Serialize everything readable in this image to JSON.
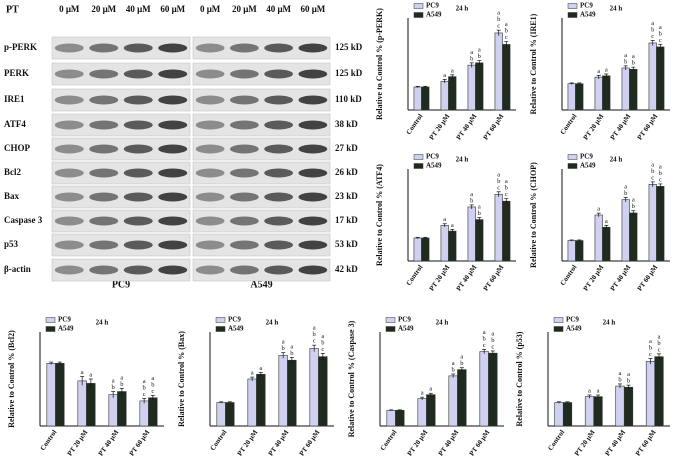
{
  "blot": {
    "treatment_label": "PT",
    "doses": [
      "0 μM",
      "20 μM",
      "40 μM",
      "60 μM"
    ],
    "proteins": [
      "p-PERK",
      "PERK",
      "IRE1",
      "ATF4",
      "CHOP",
      "Bcl2",
      "Bax",
      "Caspase 3",
      "p53",
      "β-actin"
    ],
    "sizes": [
      "125 kD",
      "125 kD",
      "110 kD",
      "38 kD",
      "27 kD",
      "26 kD",
      "23 kD",
      "17 kD",
      "53 kD",
      "42 kD"
    ],
    "cell_lines": [
      "PC9",
      "A549"
    ]
  },
  "chart_data": [
    {
      "type": "bar",
      "title": "24 h",
      "y_label": "Relative to Control % (p-PERK)",
      "categories": [
        "Control",
        "PT 20 μM",
        "PT 40 μM",
        "PT 60 μM"
      ],
      "ylim": [
        0,
        400
      ],
      "series": [
        {
          "name": "PC9",
          "color": "#d0d0f0",
          "values": [
            100,
            125,
            195,
            335
          ],
          "errors": [
            3,
            8,
            10,
            12
          ],
          "letters": [
            [],
            [
              "a"
            ],
            [
              "a",
              "b"
            ],
            [
              "a",
              "b",
              "c"
            ]
          ]
        },
        {
          "name": "A549",
          "color": "#1e2b1e",
          "values": [
            100,
            145,
            205,
            285
          ],
          "errors": [
            3,
            8,
            10,
            12
          ],
          "letters": [
            [],
            [
              "a"
            ],
            [
              "a",
              "b"
            ],
            [
              "a",
              "b",
              "c"
            ]
          ]
        }
      ]
    },
    {
      "type": "bar",
      "title": "24 h",
      "y_label": "Relative to Control % (IRE1)",
      "categories": [
        "Control",
        "PT 20 μM",
        "PT 40 μM",
        "PT 60 μM"
      ],
      "ylim": [
        0,
        350
      ],
      "series": [
        {
          "name": "PC9",
          "color": "#d0d0f0",
          "values": [
            100,
            125,
            160,
            255
          ],
          "errors": [
            3,
            7,
            8,
            10
          ],
          "letters": [
            [],
            [
              "a"
            ],
            [
              "a",
              "b"
            ],
            [
              "a",
              "b",
              "c"
            ]
          ]
        },
        {
          "name": "A549",
          "color": "#1e2b1e",
          "values": [
            100,
            130,
            155,
            240
          ],
          "errors": [
            3,
            7,
            8,
            10
          ],
          "letters": [
            [],
            [
              "a"
            ],
            [
              "a",
              "b"
            ],
            [
              "a",
              "b",
              "c"
            ]
          ]
        }
      ]
    },
    {
      "type": "bar",
      "title": "24 h",
      "y_label": "Relative to Control % (ATF4)",
      "categories": [
        "Control",
        "PT 20 μM",
        "PT 40 μM",
        "PT 60 μM"
      ],
      "ylim": [
        0,
        400
      ],
      "series": [
        {
          "name": "PC9",
          "color": "#d0d0f0",
          "values": [
            100,
            155,
            235,
            290
          ],
          "errors": [
            3,
            7,
            9,
            11
          ],
          "letters": [
            [],
            [
              "a"
            ],
            [
              "a",
              "b"
            ],
            [
              "a",
              "b",
              "c"
            ]
          ]
        },
        {
          "name": "A549",
          "color": "#1e2b1e",
          "values": [
            100,
            130,
            180,
            260
          ],
          "errors": [
            3,
            7,
            9,
            11
          ],
          "letters": [
            [],
            [
              "a"
            ],
            [
              "a",
              "b"
            ],
            [
              "a",
              "b",
              "c"
            ]
          ]
        }
      ]
    },
    {
      "type": "bar",
      "title": "24 h",
      "y_label": "Relative to Control % (CHOP)",
      "categories": [
        "Control",
        "PT 20 μM",
        "PT 40 μM",
        "PT 60 μM"
      ],
      "ylim": [
        0,
        450
      ],
      "series": [
        {
          "name": "PC9",
          "color": "#d0d0f0",
          "values": [
            100,
            225,
            300,
            375
          ],
          "errors": [
            3,
            9,
            11,
            12
          ],
          "letters": [
            [],
            [
              "a"
            ],
            [
              "a",
              "b"
            ],
            [
              "a",
              "b",
              "c"
            ]
          ]
        },
        {
          "name": "A549",
          "color": "#1e2b1e",
          "values": [
            100,
            165,
            235,
            365
          ],
          "errors": [
            3,
            9,
            11,
            12
          ],
          "letters": [
            [],
            [
              "a"
            ],
            [
              "a",
              "b"
            ],
            [
              "a",
              "b",
              "c"
            ]
          ]
        }
      ]
    },
    {
      "type": "bar",
      "title": "24 h",
      "y_label": "Relative to Control % (Bcl2)",
      "categories": [
        "Control",
        "PT 20 μM",
        "PT 40 μM",
        "PT 60 μM"
      ],
      "ylim": [
        0,
        150
      ],
      "series": [
        {
          "name": "PC9",
          "color": "#d0d0f0",
          "values": [
            100,
            72,
            50,
            40
          ],
          "errors": [
            2,
            7,
            5,
            4
          ],
          "letters": [
            [],
            [
              "a"
            ],
            [
              "a",
              "b"
            ],
            [
              "a",
              "b",
              "c"
            ]
          ]
        },
        {
          "name": "A549",
          "color": "#1e2b1e",
          "values": [
            100,
            68,
            55,
            45
          ],
          "errors": [
            2,
            7,
            5,
            4
          ],
          "letters": [
            [],
            [
              "a"
            ],
            [
              "a",
              "b"
            ],
            [
              "a",
              "b",
              "c"
            ]
          ]
        }
      ]
    },
    {
      "type": "bar",
      "title": "24 h",
      "y_label": "Relative to Control % (Bax)",
      "categories": [
        "Control",
        "PT 20 μM",
        "PT 40 μM",
        "PT 60 μM"
      ],
      "ylim": [
        0,
        400
      ],
      "series": [
        {
          "name": "PC9",
          "color": "#d0d0f0",
          "values": [
            100,
            200,
            300,
            330
          ],
          "errors": [
            3,
            8,
            12,
            14
          ],
          "letters": [
            [],
            [
              "a"
            ],
            [
              "a",
              "b"
            ],
            [
              "a",
              "b",
              "c"
            ]
          ]
        },
        {
          "name": "A549",
          "color": "#1e2b1e",
          "values": [
            100,
            220,
            280,
            295
          ],
          "errors": [
            3,
            8,
            12,
            14
          ],
          "letters": [
            [],
            [
              "a"
            ],
            [
              "a",
              "b"
            ],
            [
              "a",
              "b",
              "c"
            ]
          ]
        }
      ]
    },
    {
      "type": "bar",
      "title": "24 h",
      "y_label": "Relative to Control % (Caspase 3)",
      "categories": [
        "Control",
        "PT 20 μM",
        "PT 40 μM",
        "PT 60 μM"
      ],
      "ylim": [
        0,
        600
      ],
      "series": [
        {
          "name": "PC9",
          "color": "#d0d0f0",
          "values": [
            100,
            175,
            320,
            475
          ],
          "errors": [
            3,
            9,
            12,
            14
          ],
          "letters": [
            [],
            [
              "a"
            ],
            [
              "a",
              "b"
            ],
            [
              "a",
              "b",
              "c"
            ]
          ]
        },
        {
          "name": "A549",
          "color": "#1e2b1e",
          "values": [
            100,
            200,
            360,
            465
          ],
          "errors": [
            3,
            9,
            12,
            14
          ],
          "letters": [
            [],
            [
              "a"
            ],
            [
              "a",
              "b"
            ],
            [
              "a",
              "b",
              "c"
            ]
          ]
        }
      ]
    },
    {
      "type": "bar",
      "title": "24 h",
      "y_label": "Relative to Control % (p53)",
      "categories": [
        "Control",
        "PT 20 μM",
        "PT 40 μM",
        "PT 60 μM"
      ],
      "ylim": [
        0,
        400
      ],
      "series": [
        {
          "name": "PC9",
          "color": "#d0d0f0",
          "values": [
            100,
            125,
            170,
            275
          ],
          "errors": [
            3,
            7,
            9,
            12
          ],
          "letters": [
            [],
            [
              "a"
            ],
            [
              "a",
              "b"
            ],
            [
              "a",
              "b",
              "c"
            ]
          ]
        },
        {
          "name": "A549",
          "color": "#1e2b1e",
          "values": [
            100,
            125,
            165,
            295
          ],
          "errors": [
            3,
            7,
            9,
            12
          ],
          "letters": [
            [],
            [
              "a"
            ],
            [
              "a",
              "b"
            ],
            [
              "a",
              "b",
              "c"
            ]
          ]
        }
      ]
    }
  ]
}
